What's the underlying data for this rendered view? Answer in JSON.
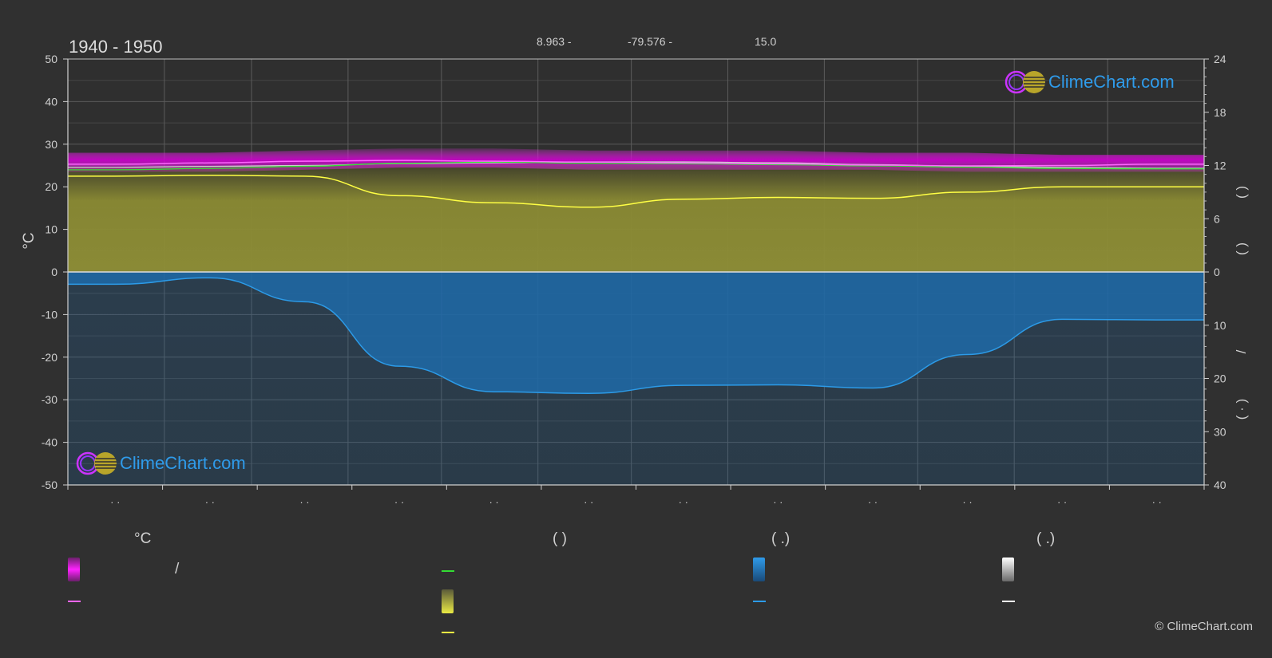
{
  "header": {
    "period": "1940 - 1950",
    "latitude": "8.963 -",
    "longitude": "-79.576 -",
    "elevation": "15.0"
  },
  "branding": {
    "logo_text": "ClimeChart.com",
    "copyright": "© ClimeChart.com"
  },
  "legend": {
    "col1_heading": "°C",
    "col1_slash": "/",
    "col2_heading": "(          )",
    "col3_heading": "(    .)",
    "col4_heading": "(    .)",
    "colors": {
      "temp_range": "#d000d0",
      "temp_mean": "#ff66ff",
      "day_min_green": "#33dd33",
      "sunshine": "#d6d63a",
      "sunshine_mean": "#ffff44",
      "rain": "#1a78c2",
      "rain_mean": "#2c9be8",
      "snow": "#e8e8e8",
      "snow_mean": "#ffffff"
    }
  },
  "chart_data": {
    "type": "area",
    "x_months": 12,
    "left_axis": {
      "label": "°C",
      "ylim": [
        -50,
        50
      ],
      "ticks": [
        "50",
        "40",
        "30",
        "20",
        "10",
        "0",
        "-10",
        "-20",
        "-30",
        "-40",
        "-50"
      ]
    },
    "right_axis_top": {
      "ticks": [
        "24",
        "18",
        "12",
        "6",
        "0"
      ],
      "ylim": [
        0,
        24
      ]
    },
    "right_axis_bottom": {
      "ticks": [
        "10",
        "20",
        "30",
        "40"
      ],
      "ylim": [
        0,
        40
      ]
    },
    "right_axis_label_glyphs": [
      "(   )",
      "(   )",
      "/",
      "(  ·  )"
    ],
    "month_tick_labels": [
      "· ·",
      "· ·",
      "· ·",
      "· ·",
      "· ·",
      "· ·",
      "· ·",
      "· ·",
      "· ·",
      "· ·",
      "· ·",
      "· ·"
    ],
    "series": [
      {
        "key": "temp_max_band",
        "values": [
          28,
          28,
          28.5,
          29,
          29,
          28.5,
          28.5,
          28.5,
          28,
          28,
          27.5,
          27.5
        ]
      },
      {
        "key": "temp_min_band",
        "values": [
          23.5,
          23.5,
          24,
          24.5,
          24.5,
          24,
          24,
          24,
          24,
          23.5,
          23.5,
          23.5
        ]
      },
      {
        "key": "temp_mean",
        "values": [
          25.3,
          25.6,
          26.0,
          26.2,
          26.0,
          25.8,
          25.6,
          25.4,
          25.1,
          24.9,
          25.0,
          25.3
        ]
      },
      {
        "key": "day_min_green",
        "values": [
          24.0,
          24.3,
          24.8,
          25.5,
          25.8,
          25.5,
          25.4,
          25.2,
          24.9,
          24.6,
          24.3,
          24.2
        ]
      },
      {
        "key": "daylight_hours",
        "values": [
          11.8,
          11.9,
          12.0,
          12.2,
          12.3,
          12.4,
          12.4,
          12.3,
          12.1,
          11.9,
          11.8,
          11.7
        ]
      },
      {
        "key": "sunshine_hours",
        "values": [
          10.8,
          10.9,
          10.8,
          8.6,
          7.8,
          7.3,
          8.2,
          8.4,
          8.3,
          9.0,
          9.6,
          9.6
        ]
      },
      {
        "key": "rain_mm",
        "values": [
          2.3,
          1.1,
          5.6,
          17.7,
          22.5,
          22.8,
          21.3,
          21.2,
          21.8,
          15.5,
          8.9,
          9.0
        ]
      }
    ]
  }
}
